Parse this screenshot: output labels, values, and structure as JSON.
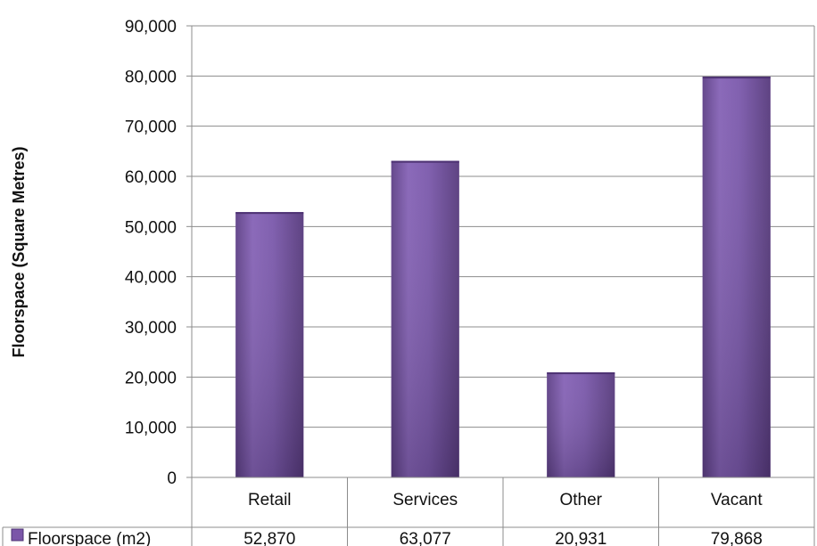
{
  "chart_data": {
    "type": "bar",
    "categories": [
      "Retail",
      "Services",
      "Other",
      "Vacant"
    ],
    "series": [
      {
        "name": "Floorspace (m2)",
        "values": [
          52870,
          63077,
          20931,
          79868
        ],
        "value_labels": [
          "52,870",
          "63,077",
          "20,931",
          "79,868"
        ]
      }
    ],
    "ylabel": "Floorspace (Square Metres)",
    "xlabel": "",
    "ylim": [
      0,
      90000
    ],
    "yticks": [
      0,
      10000,
      20000,
      30000,
      40000,
      50000,
      60000,
      70000,
      80000,
      90000
    ],
    "ytick_labels": [
      "0",
      "10,000",
      "20,000",
      "30,000",
      "40,000",
      "50,000",
      "60,000",
      "70,000",
      "80,000",
      "90,000"
    ],
    "grid": true,
    "legend": "data-table",
    "colors": {
      "bar": "#7b56a8",
      "bar_dark": "#4e3373",
      "grid": "#8c8c8c"
    }
  }
}
